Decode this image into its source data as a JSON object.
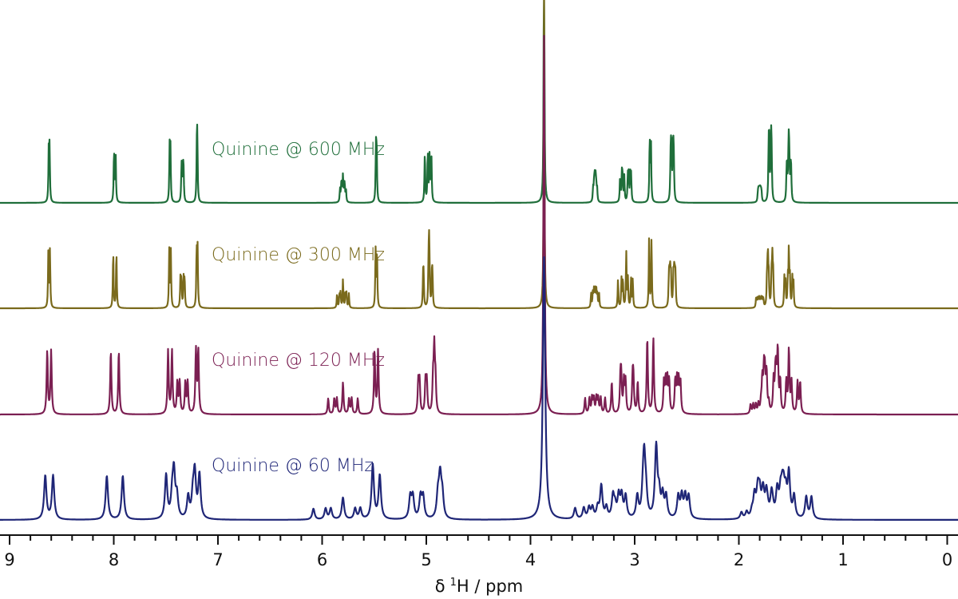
{
  "chart_data": {
    "type": "line",
    "title": "",
    "xlabel": "δ 1H / ppm",
    "xlabel_parts": {
      "symbol": "δ",
      "superscript": "1",
      "rest": "H / ppm"
    },
    "ylabel": "",
    "xlim": [
      9.09,
      -0.09
    ],
    "x_reversed": true,
    "x_ticks": [
      9,
      8,
      7,
      6,
      5,
      4,
      3,
      2,
      1,
      0
    ],
    "x_minor_tick_step": 0.2,
    "grid": false,
    "legend": "none (inline labels)",
    "series": [
      {
        "name": "Quinine @ 600 MHz",
        "field_mhz": 600,
        "color": "#1f6e3a"
      },
      {
        "name": "Quinine @ 300 MHz",
        "field_mhz": 300,
        "color": "#7a6a1c"
      },
      {
        "name": "Quinine @ 120 MHz",
        "field_mhz": 120,
        "color": "#7b1f52"
      },
      {
        "name": "Quinine @ 60 MHz",
        "field_mhz": 60,
        "color": "#1f2677"
      }
    ],
    "peaks": [
      {
        "shift": 8.62,
        "n": 1,
        "J": [
          4.5
        ]
      },
      {
        "shift": 7.99,
        "n": 1,
        "J": [
          9.2
        ]
      },
      {
        "shift": 7.46,
        "n": 1,
        "J": [
          4.5
        ]
      },
      {
        "shift": 7.34,
        "n": 1,
        "J": [
          9.2,
          2.7
        ]
      },
      {
        "shift": 7.2,
        "n": 1,
        "J": [
          2.7
        ]
      },
      {
        "shift": 5.8,
        "n": 1,
        "J": [
          17,
          10,
          7
        ]
      },
      {
        "shift": 5.48,
        "n": 1,
        "J": [
          4
        ]
      },
      {
        "shift": 5.0,
        "n": 1,
        "J": [
          17,
          1.5
        ]
      },
      {
        "shift": 4.96,
        "n": 1,
        "J": [
          10,
          1.5
        ]
      },
      {
        "shift": 3.87,
        "n": 3,
        "J": []
      },
      {
        "shift": 3.38,
        "n": 1,
        "J": [
          10,
          8,
          5
        ]
      },
      {
        "shift": 3.12,
        "n": 1,
        "J": [
          14,
          10
        ]
      },
      {
        "shift": 3.05,
        "n": 1,
        "J": [
          14,
          5
        ]
      },
      {
        "shift": 2.85,
        "n": 1.2,
        "J": [
          7
        ]
      },
      {
        "shift": 2.64,
        "n": 2,
        "J": [
          13,
          4,
          2
        ]
      },
      {
        "shift": 1.8,
        "n": 0.6,
        "J": [
          12,
          6,
          3
        ]
      },
      {
        "shift": 1.7,
        "n": 2,
        "J": [
          13,
          3,
          2
        ]
      },
      {
        "shift": 1.52,
        "n": 2,
        "J": [
          13,
          10,
          3
        ]
      }
    ]
  }
}
